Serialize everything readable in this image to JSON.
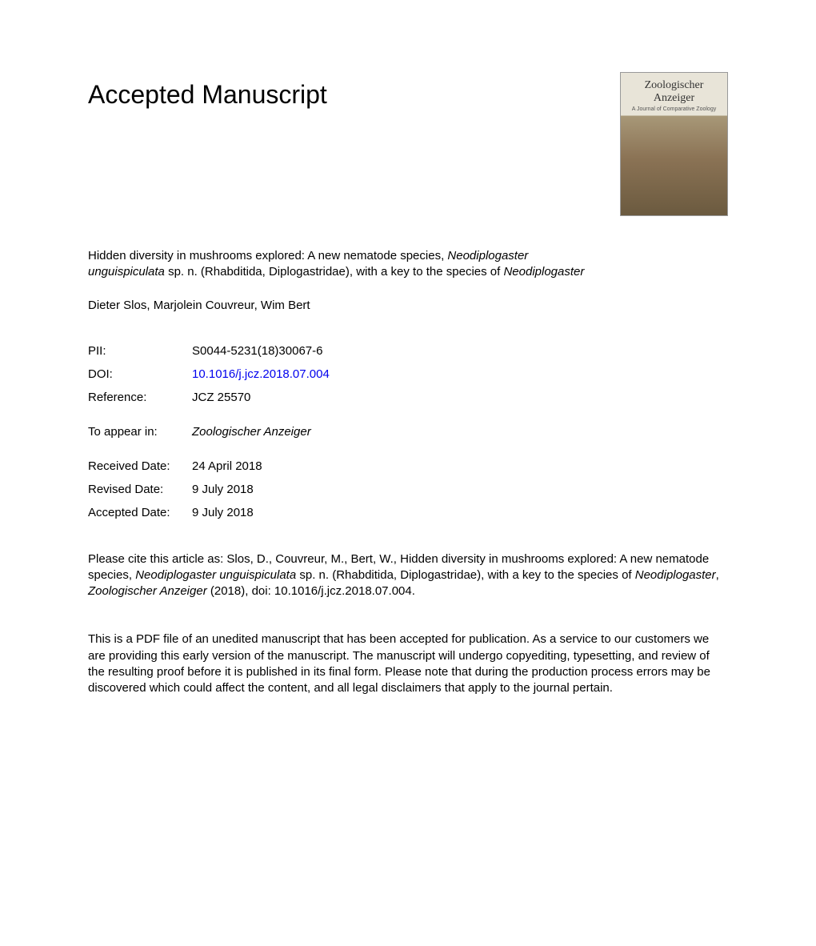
{
  "heading": "Accepted Manuscript",
  "journal_cover": {
    "title_line1": "Zoologischer",
    "title_line2": "Anzeiger",
    "subtitle": "A Journal of Comparative Zoology",
    "bg_top": "#e8e4d8",
    "bg_mid": "#a89878",
    "bg_bottom": "#6b5a3f"
  },
  "title": {
    "prefix": "Hidden diversity in mushrooms explored: A new nematode species, ",
    "species1": "Neodiplogaster unguispiculata",
    "mid": " sp. n. (Rhabditida, Diplogastridae), with a key to the species of ",
    "species2": "Neodiplogaster"
  },
  "authors": "Dieter Slos, Marjolein Couvreur, Wim Bert",
  "meta": {
    "pii_label": "PII:",
    "pii_value": "S0044-5231(18)30067-6",
    "doi_label": "DOI:",
    "doi_value": "10.1016/j.jcz.2018.07.004",
    "ref_label": "Reference:",
    "ref_value": "JCZ 25570",
    "appear_label": "To appear in:",
    "appear_value": "Zoologischer Anzeiger",
    "received_label": "Received Date:",
    "received_value": "24 April 2018",
    "revised_label": "Revised Date:",
    "revised_value": "9 July 2018",
    "accepted_label": "Accepted Date:",
    "accepted_value": "9 July 2018"
  },
  "citation": {
    "part1": "Please cite this article as: Slos, D., Couvreur, M., Bert, W., Hidden diversity in mushrooms explored: A new nematode species, ",
    "species1": "Neodiplogaster unguispiculata",
    "part2": " sp. n. (Rhabditida, Diplogastridae), with a key to the species of ",
    "species2": "Neodiplogaster",
    "part3": ", ",
    "journal": "Zoologischer Anzeiger",
    "part4": " (2018), doi: 10.1016/j.jcz.2018.07.004."
  },
  "disclaimer": "This is a PDF file of an unedited manuscript that has been accepted for publication. As a service to our customers we are providing this early version of the manuscript. The manuscript will undergo copyediting, typesetting, and review of the resulting proof before it is published in its final form. Please note that during the production process errors may be discovered which could affect the content, and all legal disclaimers that apply to the journal pertain.",
  "colors": {
    "text": "#000000",
    "link": "#0000ee",
    "background": "#ffffff"
  },
  "typography": {
    "heading_fontsize": 32,
    "body_fontsize": 15,
    "line_height": 1.35,
    "font_family": "Arial, Helvetica, sans-serif"
  }
}
